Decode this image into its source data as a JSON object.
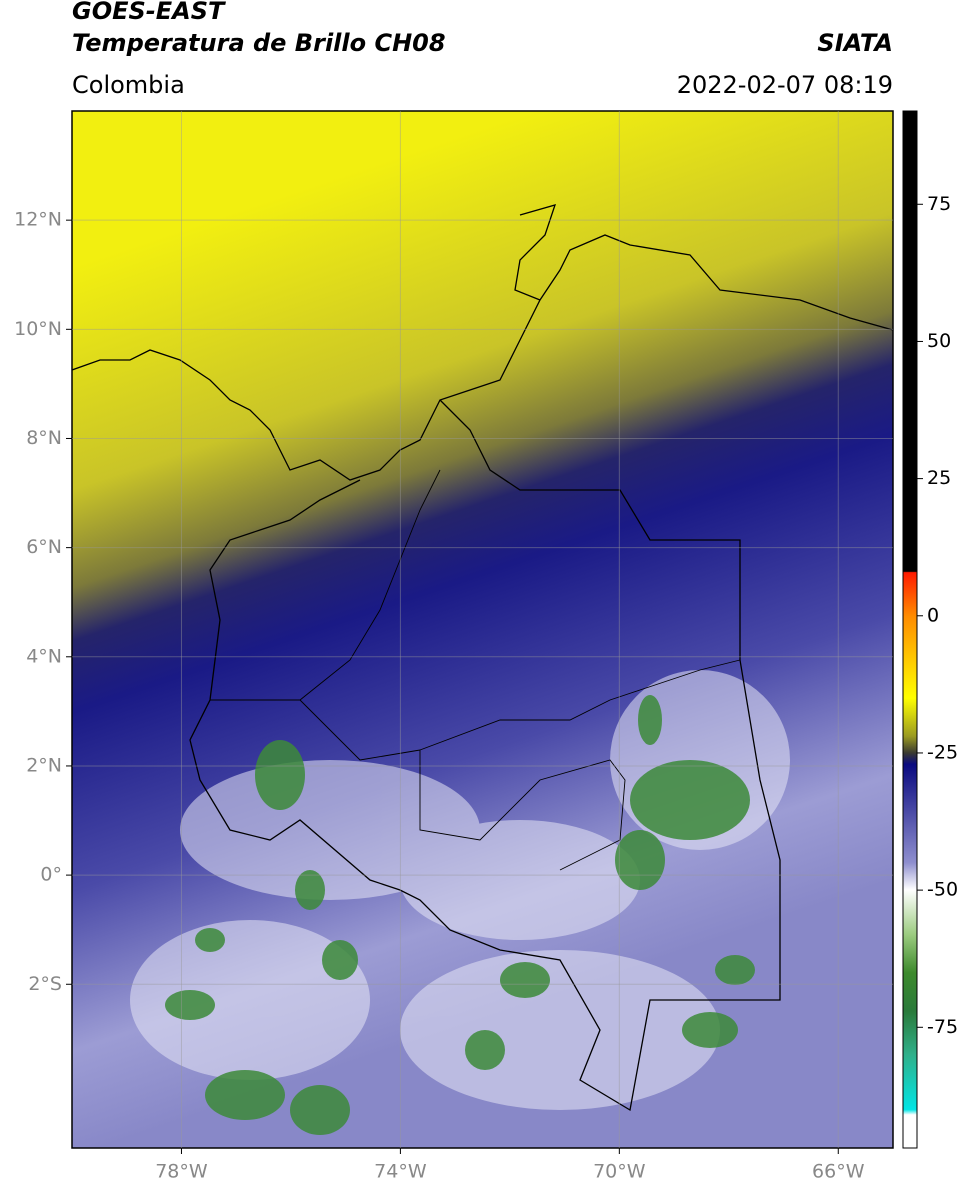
{
  "header": {
    "title": "GOES-EAST",
    "subtitle": "Temperatura de Brillo CH08",
    "region": "Colombia",
    "source": "SIATA",
    "datetime": "2022-02-07 08:19"
  },
  "map": {
    "lonlim": [
      -80,
      -65
    ],
    "latlim": [
      -5,
      14
    ],
    "lonticks": [
      {
        "value": -78,
        "label": "78°W"
      },
      {
        "value": -74,
        "label": "74°W"
      },
      {
        "value": -70,
        "label": "70°W"
      },
      {
        "value": -66,
        "label": "66°W"
      }
    ],
    "latticks": [
      {
        "value": 12,
        "label": "12°N"
      },
      {
        "value": 10,
        "label": "10°N"
      },
      {
        "value": 8,
        "label": "8°N"
      },
      {
        "value": 6,
        "label": "6°N"
      },
      {
        "value": 4,
        "label": "4°N"
      },
      {
        "value": 2,
        "label": "2°N"
      },
      {
        "value": 0,
        "label": "0°"
      },
      {
        "value": -2,
        "label": "2°S"
      }
    ],
    "grid": true
  },
  "colorbar": {
    "lim": [
      -97,
      92
    ],
    "ticks": [
      75,
      50,
      25,
      0,
      -25,
      -50,
      -75
    ]
  }
}
